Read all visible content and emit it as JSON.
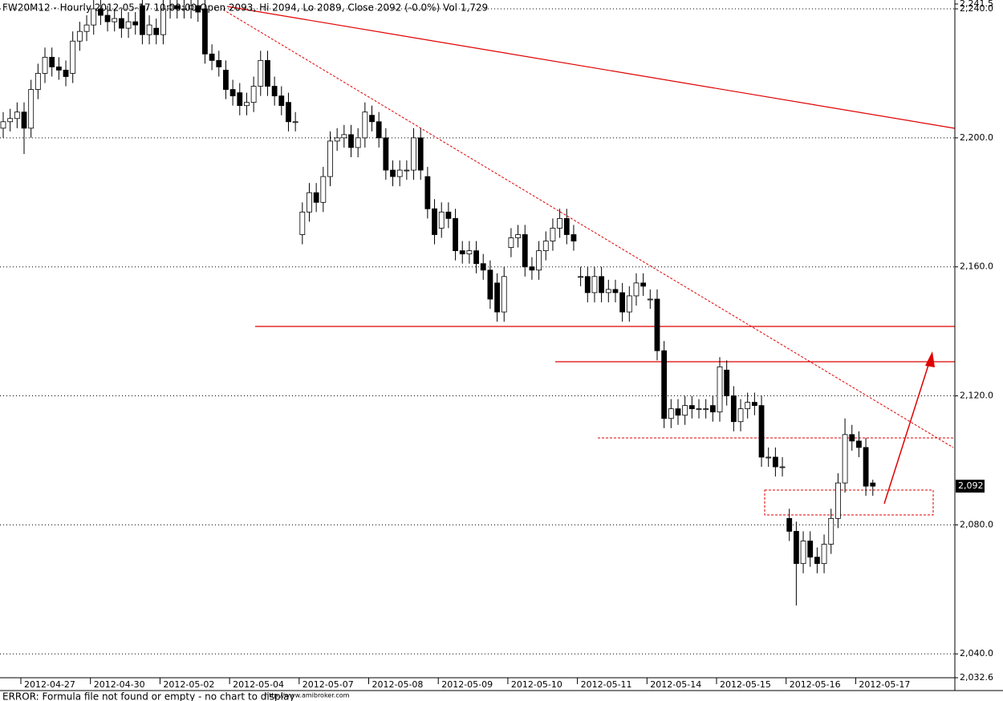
{
  "chart_data": {
    "type": "candlestick",
    "title": "FW20M12 - Hourly 2012-05-17 10:00:00 Open 2093, Hi 2094, Lo 2089, Close 2092 (-0.0%) Vol 1,729",
    "footer": "ERROR: Formula file not found or empty - no chart to display",
    "footer_url": "http://www.amibroker.com",
    "price_marker": {
      "value": 2092,
      "label": "2,092"
    },
    "up_color": "#ffffff",
    "down_color": "#000000",
    "ylim": [
      2032.6,
      2241.5
    ],
    "yticks": [
      {
        "value": 2032.6,
        "label": "2,032.6"
      },
      {
        "value": 2040,
        "label": "2,040.0"
      },
      {
        "value": 2080,
        "label": "2,080.0"
      },
      {
        "value": 2120,
        "label": "2,120.0"
      },
      {
        "value": 2160,
        "label": "2,160.0"
      },
      {
        "value": 2200,
        "label": "2,200.0"
      },
      {
        "value": 2240,
        "label": "2,240.0"
      },
      {
        "value": 2241.5,
        "label": "2,241.5"
      }
    ],
    "grid": true,
    "categories": [
      null,
      null,
      null,
      "2012-04-27",
      null,
      null,
      null,
      null,
      null,
      null,
      null,
      null,
      null,
      "2012-04-30",
      null,
      null,
      null,
      null,
      null,
      null,
      null,
      null,
      null,
      "2012-05-02",
      null,
      null,
      null,
      null,
      null,
      null,
      null,
      null,
      null,
      "2012-05-04",
      null,
      null,
      null,
      null,
      null,
      null,
      null,
      null,
      null,
      "2012-05-07",
      null,
      null,
      null,
      null,
      null,
      null,
      null,
      null,
      null,
      "2012-05-08",
      null,
      null,
      null,
      null,
      null,
      null,
      null,
      null,
      null,
      "2012-05-09",
      null,
      null,
      null,
      null,
      null,
      null,
      null,
      null,
      null,
      "2012-05-10",
      null,
      null,
      null,
      null,
      null,
      null,
      null,
      null,
      null,
      "2012-05-11",
      null,
      null,
      null,
      null,
      null,
      null,
      null,
      null,
      null,
      "2012-05-14",
      null,
      null,
      null,
      null,
      null,
      null,
      null,
      null,
      null,
      "2012-05-15",
      null,
      null,
      null,
      null,
      null,
      null,
      null,
      null,
      null,
      "2012-05-16",
      null,
      null,
      null,
      null,
      null,
      null,
      null,
      null,
      null,
      "2012-05-17",
      null,
      null
    ],
    "open": [
      2203,
      2205,
      2206,
      2208,
      2203,
      2215,
      2220,
      2225,
      2222,
      2221,
      2220,
      2230,
      2233,
      2235,
      2240,
      2238,
      2236,
      2237,
      2234,
      2236,
      2241,
      2232,
      2234,
      2232,
      2240,
      2241,
      2240,
      2240,
      2241,
      2240,
      2226,
      2224,
      2221,
      2215,
      2214,
      2210,
      2211,
      2216,
      2224,
      2216,
      2213,
      2211,
      2205,
      2170,
      2177,
      2183,
      2180,
      2188,
      2199,
      2200,
      2201,
      2197,
      2200,
      2207,
      2205,
      2200,
      2190,
      2188,
      2190,
      2190,
      2200,
      2188,
      2178,
      2172,
      2177,
      2175,
      2165,
      2164,
      2165,
      2161,
      2159,
      2155,
      2146,
      2166,
      2169,
      2170,
      2160,
      2159,
      2165,
      2168,
      2172,
      2175,
      2170,
      2157,
      2157,
      2152,
      2157,
      2152,
      2153,
      2152,
      2146,
      2151,
      2155,
      2150,
      2150,
      2134,
      2113,
      2116,
      2114,
      2117,
      2116,
      2116,
      2117,
      2115,
      2128,
      2120,
      2112,
      2116,
      2118,
      2117,
      2101,
      2101,
      2098,
      2082,
      2078,
      2068,
      2075,
      2070,
      2068,
      2074,
      2082,
      2093,
      2108,
      2106,
      2104,
      2093
    ],
    "high": [
      2208,
      2209,
      2211,
      2211,
      2218,
      2223,
      2228,
      2228,
      2225,
      2224,
      2233,
      2236,
      2238,
      2243,
      2243,
      2241,
      2240,
      2240,
      2239,
      2239,
      2244,
      2238,
      2237,
      2243,
      2244,
      2244,
      2243,
      2244,
      2244,
      2243,
      2229,
      2227,
      2224,
      2218,
      2217,
      2214,
      2219,
      2227,
      2227,
      2219,
      2216,
      2214,
      2208,
      2180,
      2186,
      2186,
      2191,
      2202,
      2203,
      2204,
      2204,
      2203,
      2211,
      2210,
      2208,
      2203,
      2193,
      2193,
      2193,
      2203,
      2203,
      2191,
      2181,
      2180,
      2180,
      2178,
      2168,
      2168,
      2168,
      2164,
      2162,
      2158,
      2160,
      2172,
      2173,
      2173,
      2163,
      2168,
      2171,
      2175,
      2178,
      2178,
      2173,
      2160,
      2160,
      2160,
      2160,
      2156,
      2156,
      2155,
      2154,
      2158,
      2158,
      2153,
      2153,
      2137,
      2119,
      2119,
      2120,
      2120,
      2119,
      2119,
      2120,
      2132,
      2131,
      2123,
      2119,
      2121,
      2121,
      2120,
      2104,
      2104,
      2101,
      2085,
      2081,
      2078,
      2078,
      2073,
      2077,
      2085,
      2096,
      2113,
      2111,
      2109,
      2107,
      2094
    ],
    "low": [
      2200,
      2202,
      2203,
      2195,
      2200,
      2212,
      2217,
      2219,
      2218,
      2216,
      2217,
      2227,
      2230,
      2232,
      2235,
      2233,
      2233,
      2231,
      2231,
      2232,
      2229,
      2229,
      2229,
      2229,
      2237,
      2237,
      2237,
      2237,
      2236,
      2223,
      2221,
      2219,
      2212,
      2210,
      2207,
      2207,
      2208,
      2213,
      2213,
      2210,
      2207,
      2202,
      2202,
      2167,
      2174,
      2177,
      2177,
      2185,
      2196,
      2197,
      2194,
      2194,
      2197,
      2202,
      2197,
      2187,
      2185,
      2185,
      2187,
      2187,
      2187,
      2175,
      2167,
      2169,
      2172,
      2162,
      2161,
      2161,
      2158,
      2156,
      2147,
      2143,
      2143,
      2163,
      2166,
      2157,
      2156,
      2156,
      2162,
      2165,
      2169,
      2167,
      2165,
      2154,
      2149,
      2149,
      2149,
      2149,
      2149,
      2143,
      2143,
      2148,
      2151,
      2147,
      2131,
      2110,
      2110,
      2111,
      2111,
      2113,
      2113,
      2113,
      2112,
      2112,
      2117,
      2109,
      2109,
      2113,
      2114,
      2098,
      2098,
      2095,
      2095,
      2075,
      2055,
      2065,
      2067,
      2065,
      2065,
      2071,
      2079,
      2090,
      2103,
      2101,
      2089,
      2089
    ],
    "close": [
      2205,
      2206,
      2208,
      2203,
      2215,
      2220,
      2225,
      2222,
      2221,
      2219,
      2230,
      2233,
      2235,
      2240,
      2238,
      2236,
      2237,
      2234,
      2236,
      2235,
      2232,
      2235,
      2232,
      2240,
      2241,
      2240,
      2240,
      2241,
      2239,
      2226,
      2224,
      2222,
      2215,
      2213,
      2210,
      2211,
      2216,
      2224,
      2216,
      2213,
      2210,
      2205,
      2205,
      2177,
      2183,
      2180,
      2188,
      2199,
      2200,
      2201,
      2197,
      2200,
      2208,
      2205,
      2200,
      2190,
      2188,
      2190,
      2190,
      2200,
      2190,
      2178,
      2170,
      2177,
      2175,
      2165,
      2164,
      2165,
      2161,
      2159,
      2150,
      2146,
      2157,
      2169,
      2170,
      2160,
      2159,
      2165,
      2168,
      2172,
      2175,
      2170,
      2168,
      2157,
      2152,
      2157,
      2152,
      2153,
      2152,
      2146,
      2151,
      2155,
      2154,
      2150,
      2134,
      2113,
      2116,
      2114,
      2117,
      2116,
      2116,
      2116,
      2115,
      2129,
      2120,
      2112,
      2116,
      2118,
      2117,
      2101,
      2101,
      2098,
      2098,
      2078,
      2068,
      2075,
      2070,
      2068,
      2074,
      2082,
      2093,
      2108,
      2106,
      2104,
      2092,
      2092
    ]
  }
}
